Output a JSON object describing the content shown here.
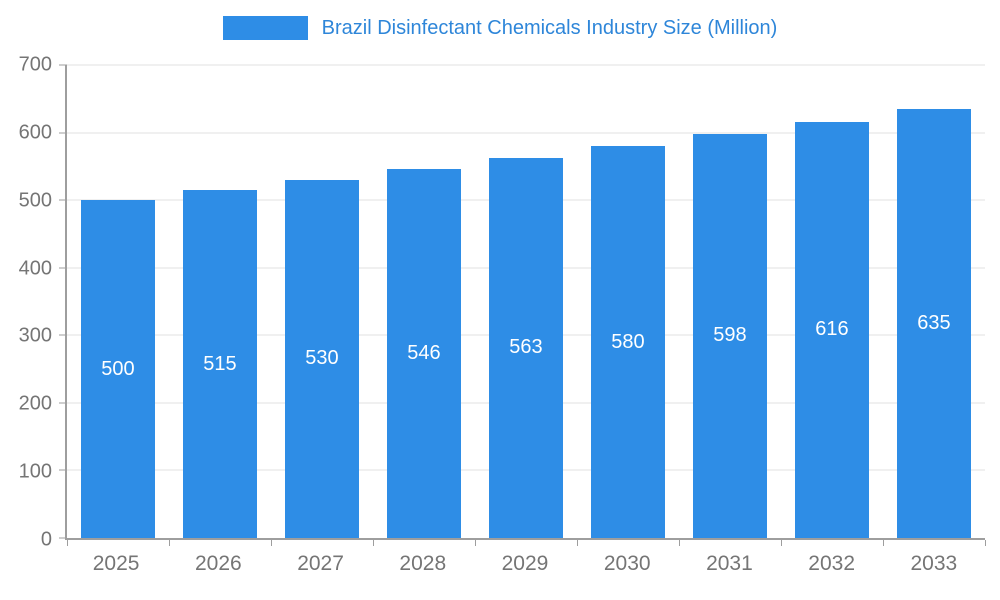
{
  "chart_data": {
    "type": "bar",
    "title": "Brazil Disinfectant Chemicals Industry Size (Million)",
    "categories": [
      "2025",
      "2026",
      "2027",
      "2028",
      "2029",
      "2030",
      "2031",
      "2032",
      "2033"
    ],
    "values": [
      500,
      515,
      530,
      546,
      563,
      580,
      598,
      616,
      635
    ],
    "xlabel": "",
    "ylabel": "",
    "ylim": [
      0,
      700
    ],
    "yticks": [
      0,
      100,
      200,
      300,
      400,
      500,
      600,
      700
    ],
    "grid": true,
    "legend_position": "top",
    "bar_color": "#2e8de6",
    "title_color": "#2e86d9",
    "axis_color": "#9e9e9e",
    "tick_label_color": "#757575",
    "value_label_color": "#ffffff"
  }
}
